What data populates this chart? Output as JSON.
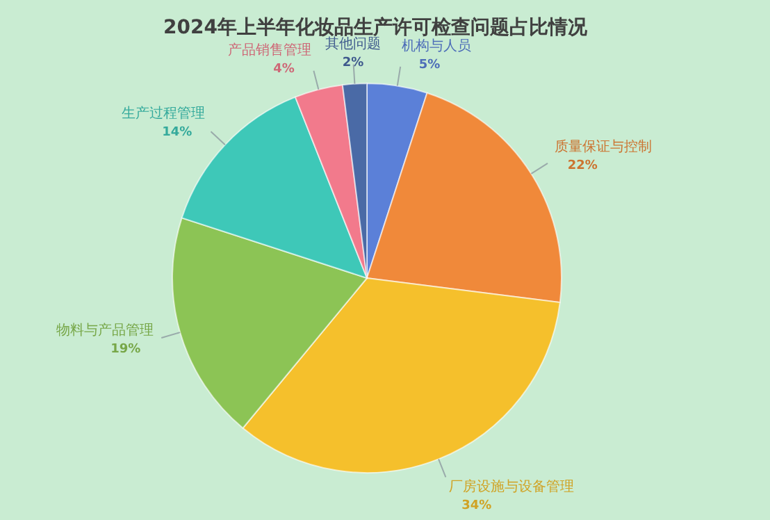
{
  "chart_data": {
    "type": "pie",
    "title": "2024年上半年化妆品生产许可检查问题占比情况",
    "categories": [
      "机构与人员",
      "质量保证与控制",
      "厂房设施与设备管理",
      "物料与产品管理",
      "生产过程管理",
      "产品销售管理",
      "其他问题"
    ],
    "values": [
      5,
      22,
      34,
      19,
      14,
      4,
      2
    ],
    "value_labels": [
      "5%",
      "22%",
      "34%",
      "19%",
      "14%",
      "4%",
      "2%"
    ],
    "colors": [
      "#5b80d8",
      "#f0893a",
      "#f5c02c",
      "#8cc455",
      "#3ec8b8",
      "#f27a8c",
      "#4a6aa6"
    ]
  }
}
